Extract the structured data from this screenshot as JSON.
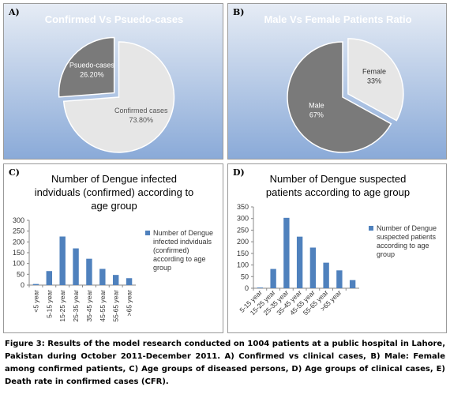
{
  "chart_data": [
    {
      "type": "pie",
      "panel": "A)",
      "title": "Confirmed Vs Psuedo-cases",
      "categories": [
        "Confirmed cases",
        "Psuedo-cases"
      ],
      "values": [
        73.8,
        26.2
      ],
      "value_labels": [
        "73.80%",
        "26.20%"
      ],
      "colors": [
        "#e6e6e6",
        "#7a7a7a"
      ]
    },
    {
      "type": "pie",
      "panel": "B)",
      "title": "Male Vs Female Patients Ratio",
      "categories": [
        "Female",
        "Male"
      ],
      "values": [
        33,
        67
      ],
      "value_labels": [
        "33%",
        "67%"
      ],
      "colors": [
        "#e6e6e6",
        "#7a7a7a"
      ]
    },
    {
      "type": "bar",
      "panel": "C)",
      "title": "Number of Dengue infected indviduals (confirmed) according to age group",
      "categories": [
        "<5 year",
        "5-15 year",
        "15-25 year",
        "25-35 year",
        "35-45 year",
        "45-55 year",
        "55-65 year",
        ">65 year"
      ],
      "series": [
        {
          "name": "Number of Dengue infected indviduals (confirmed) according to age group",
          "color": "#4f81bd",
          "values": [
            5,
            65,
            225,
            170,
            122,
            75,
            47,
            32
          ]
        }
      ],
      "ylim": [
        0,
        300
      ],
      "yticks": [
        0,
        50,
        100,
        150,
        200,
        250,
        300
      ],
      "grid": false
    },
    {
      "type": "bar",
      "panel": "D)",
      "title": "Number of Dengue suspected patients according to age group",
      "categories": [
        "5-15 year",
        "15-25 year",
        "25-35 year",
        "35-45 year",
        "45-55 year",
        "55-65 year",
        ">65 year",
        null
      ],
      "series": [
        {
          "name": "Number of Dengue suspected patients according to age group",
          "color": "#4f81bd",
          "values": [
            3,
            83,
            303,
            222,
            175,
            110,
            77,
            35
          ]
        }
      ],
      "ylim": [
        0,
        350
      ],
      "yticks": [
        0,
        50,
        100,
        150,
        200,
        250,
        300,
        350
      ],
      "grid": false
    }
  ],
  "caption": "Figure 3: Results of the model research conducted on 1004 patients at a public hospital in Lahore, Pakistan during October 2011-December 2011. A) Confirmed vs clinical cases, B) Male: Female among confirmed patients, C) Age groups of diseased persons, D) Age groups of clinical cases, E) Death rate in confirmed cases (CFR)."
}
